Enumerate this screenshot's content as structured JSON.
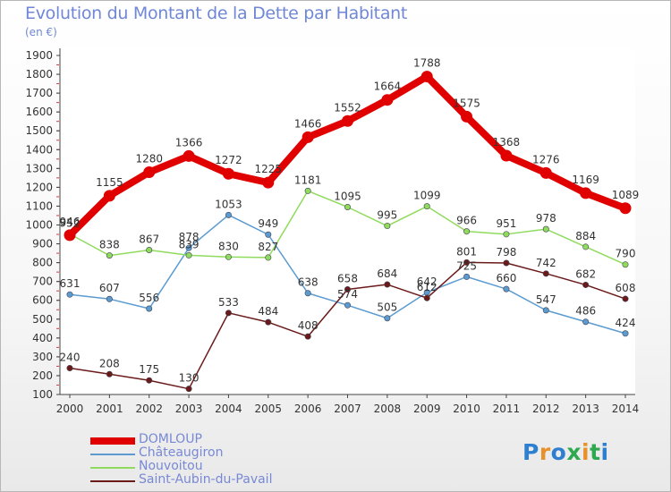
{
  "header": {
    "title": "Evolution du Montant de la Dette par Habitant",
    "unit": "(en €)"
  },
  "logo": {
    "letters": [
      "P",
      "r",
      "o",
      "x",
      "i",
      "t",
      "i"
    ],
    "colors": [
      "#2f7fd0",
      "#e8912a",
      "#2f7fd0",
      "#2fa84f",
      "#e8912a",
      "#2fa84f",
      "#2f7fd0"
    ]
  },
  "chart_data": {
    "type": "line",
    "title": "Evolution du Montant de la Dette par Habitant",
    "ylabel": "(en €)",
    "xlabel": "",
    "x": [
      "2000",
      "2001",
      "2002",
      "2003",
      "2004",
      "2005",
      "2006",
      "2007",
      "2008",
      "2009",
      "2010",
      "2011",
      "2012",
      "2013",
      "2014"
    ],
    "ylim": [
      100,
      1900
    ],
    "yticks": [
      100,
      200,
      300,
      400,
      500,
      600,
      700,
      800,
      900,
      1000,
      1100,
      1200,
      1300,
      1400,
      1500,
      1600,
      1700,
      1800,
      1900
    ],
    "grid": false,
    "legend_position": "bottom-left",
    "series": [
      {
        "name": "DOMLOUP",
        "color": "#e00000",
        "emphasis": true,
        "values": [
          946,
          1155,
          1280,
          1366,
          1272,
          1225,
          1466,
          1552,
          1664,
          1788,
          1575,
          1368,
          1276,
          1169,
          1089
        ],
        "labels": [
          "946",
          "1155",
          "1280",
          "1366",
          "1272",
          "1225",
          "1466",
          "1552",
          "1664",
          "1788",
          "1575",
          "1368",
          "1276",
          "1169",
          "1089"
        ]
      },
      {
        "name": "Châteaugiron",
        "color": "#5b9bd0",
        "emphasis": false,
        "values": [
          631,
          607,
          556,
          878,
          1053,
          949,
          638,
          574,
          505,
          642,
          725,
          660,
          547,
          486,
          424
        ],
        "labels": [
          "631",
          "607",
          "556",
          "878",
          "1053",
          "949",
          "638",
          "574",
          "505",
          "642",
          "725",
          "660",
          "547",
          "486",
          "424"
        ]
      },
      {
        "name": "Nouvoitou",
        "color": "#8fdb5d",
        "emphasis": false,
        "values": [
          952,
          838,
          867,
          839,
          830,
          827,
          1181,
          1095,
          995,
          1099,
          966,
          951,
          978,
          884,
          790
        ],
        "labels": [
          "952",
          "838",
          "867",
          "839",
          "830",
          "827",
          "1181",
          "1095",
          "995",
          "1099",
          "966",
          "951",
          "978",
          "884",
          "790"
        ]
      },
      {
        "name": "Saint-Aubin-du-Pavail",
        "color": "#6b1a1a",
        "emphasis": false,
        "values": [
          240,
          208,
          175,
          130,
          533,
          484,
          408,
          658,
          684,
          612,
          801,
          798,
          742,
          682,
          608
        ],
        "labels": [
          "240",
          "208",
          "175",
          "130",
          "533",
          "484",
          "408",
          "658",
          "684",
          "612",
          "801",
          "798",
          "742",
          "682",
          "608"
        ]
      }
    ]
  }
}
